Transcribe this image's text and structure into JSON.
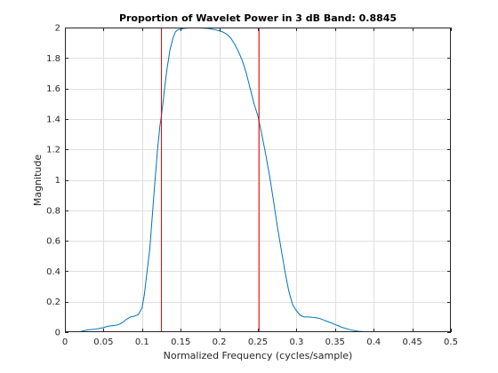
{
  "chart_data": {
    "type": "line",
    "title": "Proportion of Wavelet Power in 3 dB Band: 0.8845",
    "xlabel": "Normalized Frequency (cycles/sample)",
    "ylabel": "Magnitude",
    "xlim": [
      0,
      0.5
    ],
    "ylim": [
      0,
      2
    ],
    "xticks": [
      0,
      0.05,
      0.1,
      0.15,
      0.2,
      0.25,
      0.3,
      0.35,
      0.4,
      0.45,
      0.5
    ],
    "xtick_labels": [
      "0",
      "0.05",
      "0.1",
      "0.15",
      "0.2",
      "0.25",
      "0.3",
      "0.35",
      "0.4",
      "0.45",
      "0.5"
    ],
    "yticks": [
      0,
      0.2,
      0.4,
      0.6,
      0.8,
      1,
      1.2,
      1.4,
      1.6,
      1.8,
      2
    ],
    "ytick_labels": [
      "0",
      "0.2",
      "0.4",
      "0.6",
      "0.8",
      "1",
      "1.2",
      "1.4",
      "1.6",
      "1.8",
      "2"
    ],
    "grid": true,
    "series": [
      {
        "color": "#0072bd",
        "x": [
          0,
          0.01,
          0.02,
          0.025,
          0.03,
          0.04,
          0.045,
          0.05,
          0.055,
          0.06,
          0.065,
          0.07,
          0.075,
          0.08,
          0.085,
          0.09,
          0.095,
          0.1,
          0.103,
          0.106,
          0.11,
          0.113,
          0.116,
          0.12,
          0.123,
          0.125,
          0.128,
          0.132,
          0.136,
          0.14,
          0.143,
          0.146,
          0.15,
          0.155,
          0.16,
          0.165,
          0.17,
          0.175,
          0.18,
          0.185,
          0.19,
          0.195,
          0.2,
          0.205,
          0.21,
          0.215,
          0.22,
          0.225,
          0.23,
          0.235,
          0.24,
          0.245,
          0.25,
          0.255,
          0.26,
          0.265,
          0.27,
          0.275,
          0.28,
          0.285,
          0.29,
          0.295,
          0.3,
          0.305,
          0.31,
          0.315,
          0.32,
          0.325,
          0.33,
          0.335,
          0.34,
          0.345,
          0.35,
          0.355,
          0.36,
          0.37,
          0.38,
          0.39,
          0.395,
          0.4,
          0.42,
          0.45,
          0.5
        ],
        "y": [
          0,
          0,
          0.003,
          0.01,
          0.015,
          0.02,
          0.025,
          0.03,
          0.038,
          0.042,
          0.045,
          0.05,
          0.065,
          0.085,
          0.1,
          0.105,
          0.115,
          0.16,
          0.25,
          0.38,
          0.55,
          0.75,
          0.95,
          1.2,
          1.35,
          1.42,
          1.55,
          1.72,
          1.85,
          1.93,
          1.97,
          1.985,
          1.99,
          1.995,
          1.997,
          1.998,
          1.998,
          1.997,
          1.996,
          1.994,
          1.99,
          1.985,
          1.978,
          1.97,
          1.955,
          1.93,
          1.89,
          1.84,
          1.78,
          1.7,
          1.6,
          1.5,
          1.42,
          1.3,
          1.17,
          1.03,
          0.87,
          0.7,
          0.55,
          0.4,
          0.27,
          0.18,
          0.14,
          0.11,
          0.1,
          0.1,
          0.098,
          0.095,
          0.09,
          0.08,
          0.07,
          0.06,
          0.05,
          0.04,
          0.03,
          0.015,
          0.006,
          0.002,
          0.001,
          0,
          0,
          0,
          0
        ]
      }
    ],
    "vertical_lines": [
      {
        "x": 0.125,
        "color": "#ff0000"
      },
      {
        "x": 0.2515,
        "color": "#ff0000"
      }
    ]
  }
}
